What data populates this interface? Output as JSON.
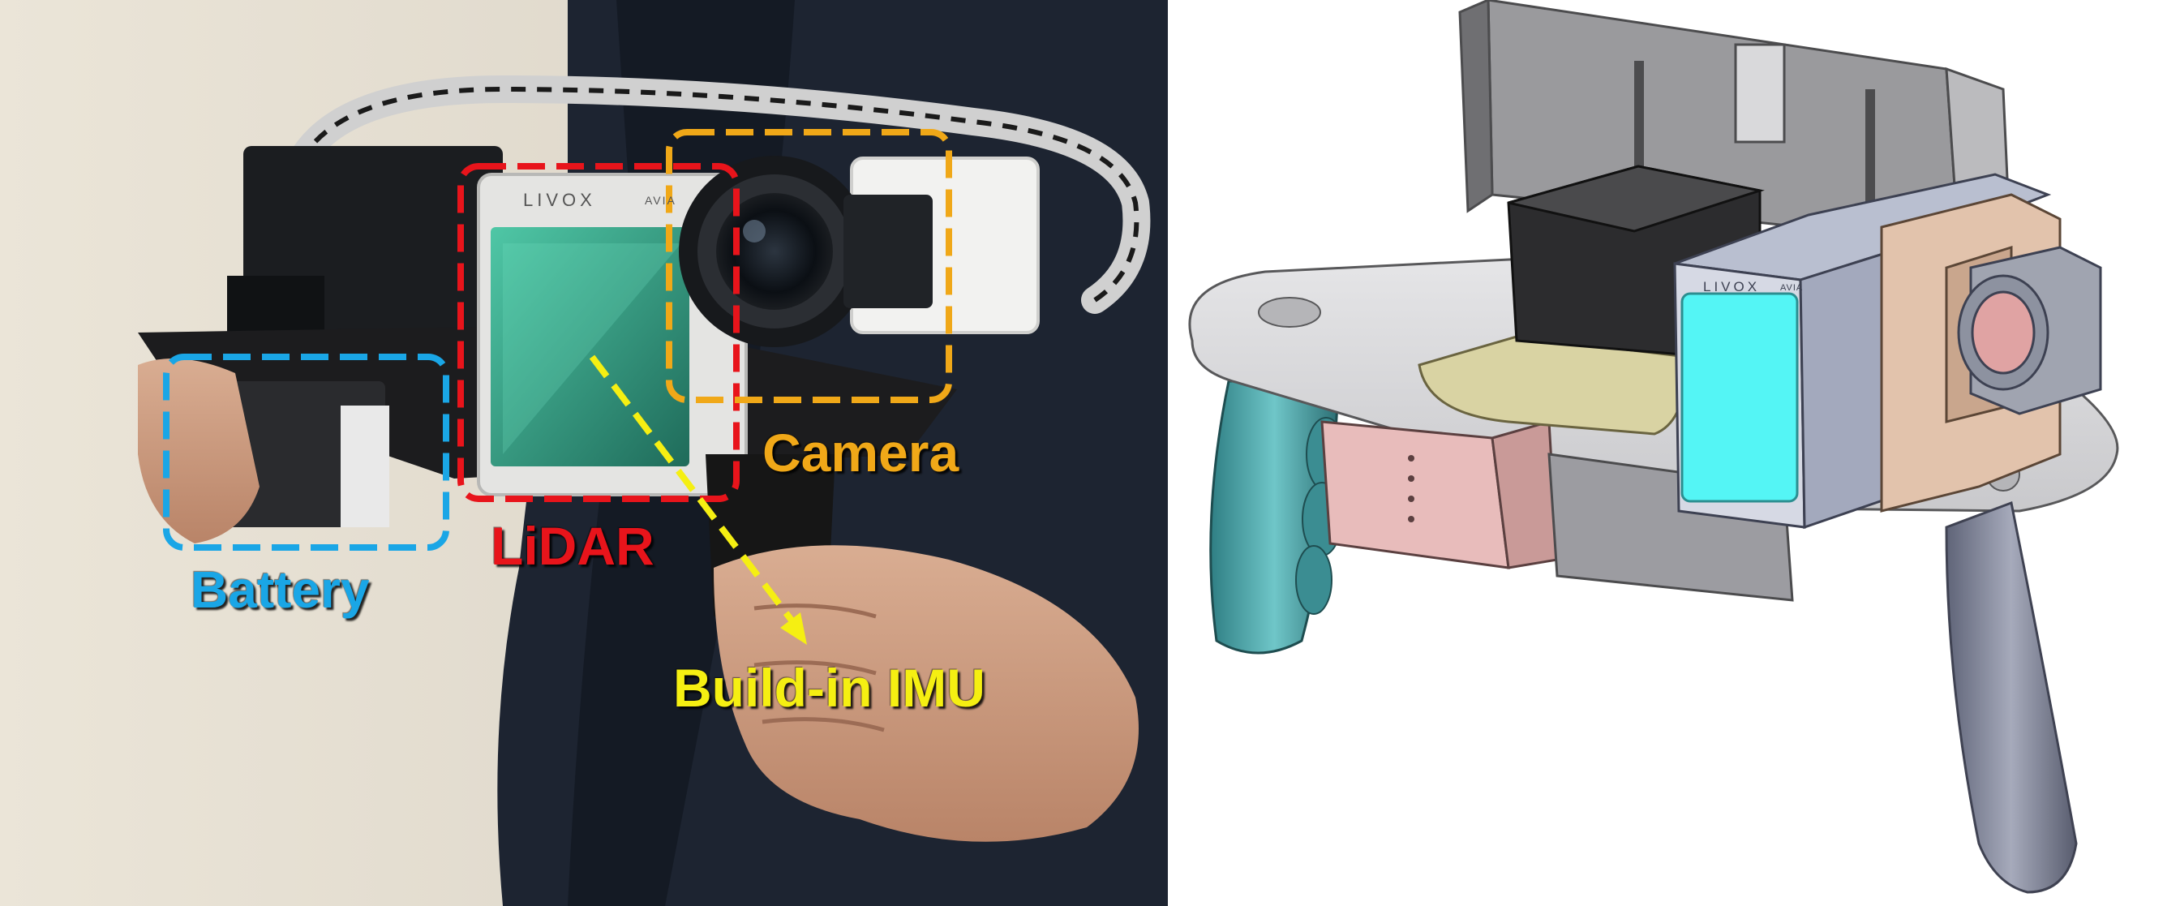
{
  "photo_panel": {
    "labels": {
      "battery": "Battery",
      "lidar": "LiDAR",
      "camera": "Camera",
      "imu": "Build-in IMU"
    },
    "logo": {
      "brand": "LIVOX",
      "model": "AVIA"
    },
    "colors": {
      "battery": "#1aa6e6",
      "lidar": "#e8141b",
      "camera": "#f0a818",
      "imu": "#f5ef12"
    }
  },
  "cad_panel": {
    "logo": {
      "brand": "LIVOX",
      "model": "AVIA"
    }
  }
}
